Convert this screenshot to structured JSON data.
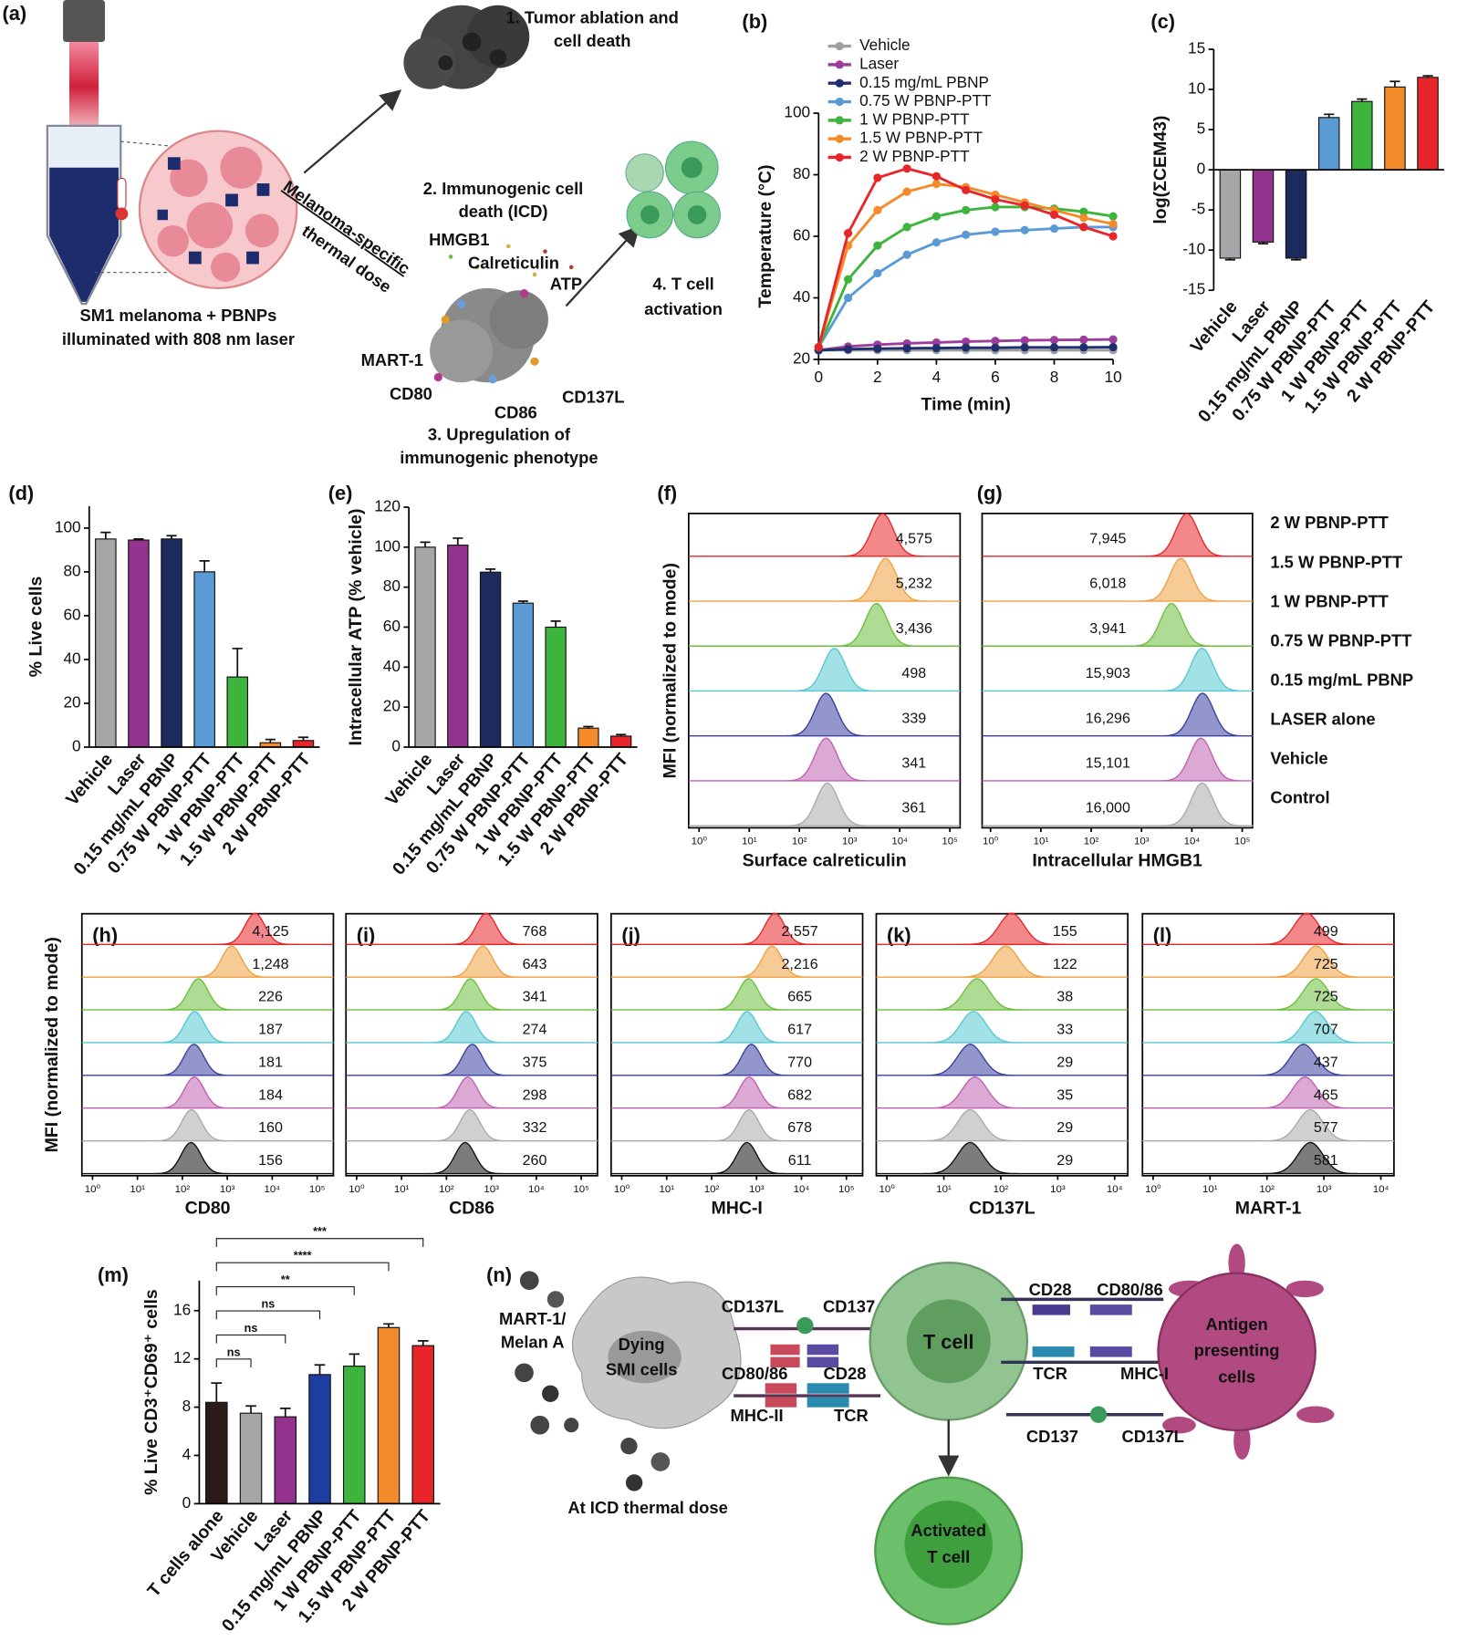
{
  "figure_a": {
    "panel_label": "(a)",
    "step1": [
      "1. Tumor ablation and",
      "cell death"
    ],
    "step2": [
      "2. Immunogenic cell",
      "death (ICD)"
    ],
    "hmgb1": "HMGB1",
    "calreticulin": "Calreticulin",
    "atp": "ATP",
    "thermal_dose": [
      "Melanoma-specific",
      "thermal dose"
    ],
    "setup": [
      "SM1 melanoma + PBNPs",
      "illuminated with 808 nm laser"
    ],
    "step4": [
      "4. T cell",
      "activation"
    ],
    "mart1": "MART-1",
    "cd80": "CD80",
    "cd86": "CD86",
    "cd137l": "CD137L",
    "step3": [
      "3. Upregulation of",
      "immunogenic phenotype"
    ]
  },
  "chart_data": [
    {
      "type": "line",
      "panel_label": "(b)",
      "xlabel": "Time (min)",
      "ylabel": "Temperature (°C)",
      "x": [
        0,
        1,
        2,
        3,
        4,
        5,
        6,
        7,
        8,
        9,
        10
      ],
      "xlim": [
        0,
        10
      ],
      "xticks": [
        0,
        2,
        4,
        6,
        8,
        10
      ],
      "ylim": [
        20,
        100
      ],
      "yticks": [
        20,
        40,
        60,
        80,
        100
      ],
      "series": [
        {
          "name": "Vehicle",
          "color": "#a0a0a0",
          "values": [
            23,
            23,
            23,
            23,
            23,
            23,
            23,
            23,
            23,
            23,
            23
          ]
        },
        {
          "name": "Laser",
          "color": "#9c3d9c",
          "values": [
            23,
            24.2,
            24.8,
            25.2,
            25.5,
            25.8,
            26,
            26.2,
            26.3,
            26.4,
            26.5
          ]
        },
        {
          "name": "0.15 mg/mL PBNP",
          "color": "#1f2f70",
          "values": [
            23,
            23.3,
            23.5,
            23.6,
            23.7,
            23.8,
            23.8,
            23.9,
            23.9,
            23.9,
            24
          ]
        },
        {
          "name": "0.75 W PBNP-PTT",
          "color": "#5b9bd5",
          "values": [
            24,
            40,
            48,
            54,
            58,
            60.5,
            61.5,
            62,
            62.5,
            63,
            63
          ]
        },
        {
          "name": "1 W PBNP-PTT",
          "color": "#3db53d",
          "values": [
            24,
            46,
            57,
            63,
            66.5,
            68.5,
            69.5,
            69.5,
            69,
            68,
            66.5
          ]
        },
        {
          "name": "1.5 W PBNP-PTT",
          "color": "#f38b2a",
          "values": [
            24,
            57,
            68.5,
            74.5,
            77,
            76,
            73.5,
            71,
            68.5,
            66,
            64
          ]
        },
        {
          "name": "2 W PBNP-PTT",
          "color": "#e8262a",
          "values": [
            24,
            61,
            79,
            82,
            79.5,
            75,
            72,
            70,
            67,
            63,
            60
          ]
        }
      ]
    },
    {
      "type": "bar",
      "panel_label": "(c)",
      "ylabel": "log(ΣCEM43)",
      "categories": [
        "Vehicle",
        "Laser",
        "0.15 mg/mL PBNP",
        "0.75 W PBNP-PTT",
        "1 W PBNP-PTT",
        "1.5 W PBNP-PTT",
        "2 W PBNP-PTT"
      ],
      "values": [
        -11,
        -9,
        -11,
        6.5,
        8.5,
        10.3,
        11.5
      ],
      "errors": [
        0.2,
        0.2,
        0.2,
        0.4,
        0.3,
        0.7,
        0.2
      ],
      "colors": [
        "#a6a6a8",
        "#93338f",
        "#1c2a5c",
        "#5b9bd5",
        "#3db53d",
        "#f38b2a",
        "#e8262a"
      ],
      "ylim": [
        -15,
        15
      ],
      "yticks": [
        -15,
        -10,
        -5,
        0,
        5,
        10,
        15
      ]
    },
    {
      "type": "bar",
      "panel_label": "(d)",
      "ylabel": "% Live cells",
      "categories": [
        "Vehicle",
        "Laser",
        "0.15 mg/mL PBNP",
        "0.75 W PBNP-PTT",
        "1 W PBNP-PTT",
        "1.5 W PBNP-PTT",
        "2 W PBNP-PTT"
      ],
      "values": [
        95,
        94.5,
        95,
        80,
        32,
        2,
        3
      ],
      "errors": [
        3,
        0.5,
        1.5,
        5,
        13,
        1.5,
        1.5
      ],
      "colors": [
        "#a6a6a8",
        "#93338f",
        "#1c2a5c",
        "#5b9bd5",
        "#3db53d",
        "#f38b2a",
        "#e8262a"
      ],
      "ylim": [
        0,
        110
      ],
      "yticks": [
        0,
        20,
        40,
        60,
        80,
        100
      ]
    },
    {
      "type": "bar",
      "panel_label": "(e)",
      "ylabel": "Intracellular ATP (% vehicle)",
      "categories": [
        "Vehicle",
        "Laser",
        "0.15 mg/mL PBNP",
        "0.75 W PBNP-PTT",
        "1 W PBNP-PTT",
        "1.5 W PBNP-PTT",
        "2 W PBNP-PTT"
      ],
      "values": [
        100,
        101,
        87.5,
        72,
        60,
        9.5,
        5.5
      ],
      "errors": [
        2.5,
        3.5,
        1.5,
        1,
        3,
        0.8,
        0.8
      ],
      "colors": [
        "#a6a6a8",
        "#93338f",
        "#1c2a5c",
        "#5b9bd5",
        "#3db53d",
        "#f38b2a",
        "#e8262a"
      ],
      "ylim": [
        0,
        120
      ],
      "yticks": [
        0,
        20,
        40,
        60,
        80,
        100,
        120
      ]
    },
    {
      "type": "histogram-stack",
      "panel_label": "(f)",
      "ylabel": "MFI (normalized to mode)",
      "xlabel": "Surface calreticulin",
      "log_x": true,
      "xlim": [
        0.62,
        160000
      ],
      "xticks": [
        {
          "value": 1,
          "label": "10⁰"
        },
        {
          "value": 10,
          "label": "10¹"
        },
        {
          "value": 100,
          "label": "10²"
        },
        {
          "value": 1000,
          "label": "10³"
        },
        {
          "value": 10000,
          "label": "10⁴"
        },
        {
          "value": 100000,
          "label": "10⁵"
        }
      ],
      "values": [
        4575,
        5232,
        3436,
        498,
        339,
        341,
        361
      ],
      "value_labels": [
        "4,575",
        "5,232",
        "3,436",
        "498",
        "339",
        "341",
        "361"
      ]
    },
    {
      "type": "histogram-stack",
      "panel_label": "(g)",
      "xlabel": "Intracellular HMGB1",
      "log_x": true,
      "xlim": [
        0.68,
        160000
      ],
      "xticks": [
        {
          "value": 1,
          "label": "10⁰"
        },
        {
          "value": 10,
          "label": "10¹"
        },
        {
          "value": 100,
          "label": "10²"
        },
        {
          "value": 1000,
          "label": "10³"
        },
        {
          "value": 10000,
          "label": "10⁴"
        },
        {
          "value": 100000,
          "label": "10⁵"
        }
      ],
      "values": [
        7945,
        6018,
        3941,
        15903,
        16296,
        15101,
        16000
      ],
      "value_labels": [
        "7,945",
        "6,018",
        "3,941",
        "15,903",
        "16,296",
        "15,101",
        "16,000"
      ]
    },
    {
      "type": "histogram-stack",
      "panel_label": "(h)",
      "ylabel": "MFI (normalized to mode)",
      "xlabel": "CD80",
      "log_x": true,
      "xlim": [
        0.58,
        230000
      ],
      "xticks": [
        {
          "value": 1,
          "label": "10⁰"
        },
        {
          "value": 10,
          "label": "10¹"
        },
        {
          "value": 100,
          "label": "10²"
        },
        {
          "value": 1000,
          "label": "10³"
        },
        {
          "value": 10000,
          "label": "10⁴"
        },
        {
          "value": 100000,
          "label": "10⁵"
        }
      ],
      "values": [
        4125,
        1248,
        226,
        187,
        181,
        184,
        160,
        156
      ],
      "value_labels": [
        "4,125",
        "1,248",
        "226",
        "187",
        "181",
        "184",
        "160",
        "156"
      ]
    },
    {
      "type": "histogram-stack",
      "panel_label": "(i)",
      "xlabel": "CD86",
      "log_x": true,
      "xlim": [
        0.58,
        230000
      ],
      "xticks": [
        {
          "value": 1,
          "label": "10⁰"
        },
        {
          "value": 10,
          "label": "10¹"
        },
        {
          "value": 100,
          "label": "10²"
        },
        {
          "value": 1000,
          "label": "10³"
        },
        {
          "value": 10000,
          "label": "10⁴"
        },
        {
          "value": 100000,
          "label": "10⁵"
        }
      ],
      "values": [
        768,
        643,
        341,
        274,
        375,
        298,
        332,
        260
      ],
      "value_labels": [
        "768",
        "643",
        "341",
        "274",
        "375",
        "298",
        "332",
        "260"
      ]
    },
    {
      "type": "histogram-stack",
      "panel_label": "(j)",
      "xlabel": "MHC-I",
      "log_x": true,
      "xlim": [
        0.58,
        230000
      ],
      "xticks": [
        {
          "value": 1,
          "label": "10⁰"
        },
        {
          "value": 10,
          "label": "10¹"
        },
        {
          "value": 100,
          "label": "10²"
        },
        {
          "value": 1000,
          "label": "10³"
        },
        {
          "value": 10000,
          "label": "10⁴"
        },
        {
          "value": 100000,
          "label": "10⁵"
        }
      ],
      "values": [
        2557,
        2216,
        665,
        617,
        770,
        682,
        678,
        611
      ],
      "value_labels": [
        "2,557",
        "2,216",
        "665",
        "617",
        "770",
        "682",
        "678",
        "611"
      ]
    },
    {
      "type": "histogram-stack",
      "panel_label": "(k)",
      "xlabel": "CD137L",
      "log_x": true,
      "xlim": [
        0.65,
        17000
      ],
      "xticks": [
        {
          "value": 1,
          "label": "10⁰"
        },
        {
          "value": 10,
          "label": "10¹"
        },
        {
          "value": 100,
          "label": "10²"
        },
        {
          "value": 1000,
          "label": "10³"
        },
        {
          "value": 10000,
          "label": "10⁴"
        }
      ],
      "values": [
        155,
        122,
        38,
        33,
        29,
        35,
        29,
        29
      ],
      "value_labels": [
        "155",
        "122",
        "38",
        "33",
        "29",
        "35",
        "29",
        "29"
      ]
    },
    {
      "type": "histogram-stack",
      "panel_label": "(l)",
      "xlabel": "MART-1",
      "log_x": true,
      "xlim": [
        0.65,
        17000
      ],
      "xticks": [
        {
          "value": 1,
          "label": "10⁰"
        },
        {
          "value": 10,
          "label": "10¹"
        },
        {
          "value": 100,
          "label": "10²"
        },
        {
          "value": 1000,
          "label": "10³"
        },
        {
          "value": 10000,
          "label": "10⁴"
        }
      ],
      "values": [
        499,
        725,
        725,
        707,
        437,
        465,
        577,
        581
      ],
      "value_labels": [
        "499",
        "725",
        "725",
        "707",
        "437",
        "465",
        "577",
        "581"
      ]
    },
    {
      "type": "bar",
      "panel_label": "(m)",
      "ylabel": "% Live CD3⁺CD69⁺ cells",
      "categories": [
        "T cells alone",
        "Vehicle",
        "Laser",
        "0.15 mg/mL PBNP",
        "1 W PBNP-PTT",
        "1.5 W PBNP-PTT",
        "2 W PBNP-PTT"
      ],
      "values": [
        8.4,
        7.5,
        7.2,
        10.7,
        11.4,
        14.6,
        13.1
      ],
      "errors": [
        1.6,
        0.6,
        0.7,
        0.8,
        1,
        0.3,
        0.4
      ],
      "colors": [
        "#2a1a1a",
        "#a6a6a8",
        "#93338f",
        "#1c3ea0",
        "#3db53d",
        "#f38b2a",
        "#e8262a"
      ],
      "ylim": [
        0,
        18.5
      ],
      "yticks": [
        0,
        4,
        8,
        12,
        16
      ],
      "significance": [
        "ns",
        "ns",
        "ns",
        "**",
        "****",
        "***"
      ]
    }
  ],
  "histogram_legend": [
    {
      "name": "2 W PBNP-PTT",
      "color": "#e8262a"
    },
    {
      "name": "1.5 W PBNP-PTT",
      "color": "#f0a040"
    },
    {
      "name": "1 W PBNP-PTT",
      "color": "#6cbf3c"
    },
    {
      "name": "0.75 W PBNP-PTT",
      "color": "#55c8d0"
    },
    {
      "name": "0.15 mg/mL PBNP",
      "color": "#3a3f9e"
    },
    {
      "name": "LASER alone",
      "color": "#c060b0"
    },
    {
      "name": "Vehicle",
      "color": "#aaaaaa"
    },
    {
      "name": "Control",
      "color": "#111111"
    }
  ],
  "figure_n": {
    "panel_label": "(n)",
    "mart1": [
      "MART-1/",
      "Melan A"
    ],
    "dying": [
      "Dying",
      "SMI cells"
    ],
    "thermal": "At ICD thermal dose",
    "left": {
      "cd137l": "CD137L",
      "cd137": "CD137",
      "cd8086": "CD80/86",
      "cd28": "CD28",
      "mhc2": "MHC-II",
      "tcr": "TCR"
    },
    "tcell": "T cell",
    "right": {
      "cd28": "CD28",
      "cd8086": "CD80/86",
      "tcr": "TCR",
      "mhc1": "MHC-I",
      "cd137": "CD137",
      "cd137l": "CD137L"
    },
    "apc": [
      "Antigen",
      "presenting",
      "cells"
    ],
    "activated": [
      "Activated",
      "T cell"
    ]
  }
}
